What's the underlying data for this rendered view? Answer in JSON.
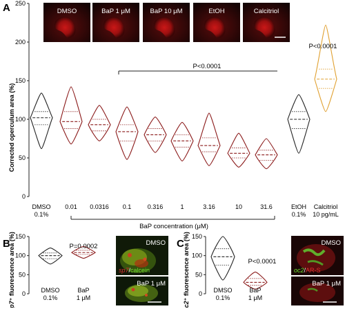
{
  "panels": {
    "A": {
      "letter": "A",
      "image_labels": [
        "DMSO",
        "BaP 1 μM",
        "BaP 10 μM",
        "EtOH",
        "Calcitriol"
      ],
      "ylabel": "Corrected operculum area (%)",
      "pval_group": "P<0.0001",
      "pval_calcitriol": "P<0.0001",
      "xgroup_label": "BaP concentration (μM)",
      "categories": [
        {
          "l1": "DMSO",
          "l2": "0.1%"
        },
        {
          "l1": "0.01",
          "l2": ""
        },
        {
          "l1": "0.0316",
          "l2": ""
        },
        {
          "l1": "0.1",
          "l2": ""
        },
        {
          "l1": "0.316",
          "l2": ""
        },
        {
          "l1": "1",
          "l2": ""
        },
        {
          "l1": "3.16",
          "l2": ""
        },
        {
          "l1": "10",
          "l2": ""
        },
        {
          "l1": "31.6",
          "l2": ""
        },
        {
          "l1": "EtOH",
          "l2": "0.1%"
        },
        {
          "l1": "Calcitriol",
          "l2": "10 pg/mL"
        }
      ]
    },
    "B": {
      "letter": "B",
      "ylabel_italic": "sp7",
      "ylabel_rest": "⁺ fluorescence area (%)",
      "pval": "P=0.0002",
      "categories": [
        {
          "l1": "DMSO",
          "l2": "0.1%"
        },
        {
          "l1": "BaP",
          "l2": "1 μM"
        }
      ],
      "img_top": "DMSO",
      "legend_red": "sp7",
      "legend_sep": "/",
      "legend_green": "calcein",
      "img_bottom": "BaP 1 μM"
    },
    "C": {
      "letter": "C",
      "ylabel_italic": "oc2",
      "ylabel_rest": "⁺ fluorescence area (%)",
      "pval": "P<0.0001",
      "categories": [
        {
          "l1": "DMSO",
          "l2": "0.1%"
        },
        {
          "l1": "BaP",
          "l2": "1 μM"
        }
      ],
      "img_top": "DMSO",
      "legend_green": "oc2",
      "legend_sep": "/",
      "legend_red": "AR-S",
      "img_bottom": "BaP 1 μM"
    }
  },
  "colors": {
    "black": "#222222",
    "bap": "#8b1a1a",
    "calcitriol": "#e0a030",
    "img_bg": "#1a0a0a"
  },
  "chart_data": [
    {
      "type": "violin",
      "panel": "A",
      "ylim": [
        0,
        250
      ],
      "yticks": [
        0,
        50,
        100,
        150,
        200,
        250
      ],
      "series": [
        {
          "category": "DMSO 0.1%",
          "min": 62,
          "q1": 93,
          "median": 102,
          "q3": 110,
          "max": 134,
          "color": "black"
        },
        {
          "category": "0.01",
          "min": 68,
          "q1": 88,
          "median": 97,
          "q3": 110,
          "max": 142,
          "color": "bap"
        },
        {
          "category": "0.0316",
          "min": 72,
          "q1": 85,
          "median": 93,
          "q3": 100,
          "max": 118,
          "color": "bap"
        },
        {
          "category": "0.1",
          "min": 48,
          "q1": 72,
          "median": 84,
          "q3": 93,
          "max": 116,
          "color": "bap"
        },
        {
          "category": "0.316",
          "min": 57,
          "q1": 72,
          "median": 80,
          "q3": 88,
          "max": 103,
          "color": "bap"
        },
        {
          "category": "1",
          "min": 46,
          "q1": 64,
          "median": 72,
          "q3": 80,
          "max": 96,
          "color": "bap"
        },
        {
          "category": "3.16",
          "min": 40,
          "q1": 58,
          "median": 66,
          "q3": 76,
          "max": 108,
          "color": "bap"
        },
        {
          "category": "10",
          "min": 38,
          "q1": 50,
          "median": 56,
          "q3": 63,
          "max": 82,
          "color": "bap"
        },
        {
          "category": "31.6",
          "min": 36,
          "q1": 47,
          "median": 54,
          "q3": 60,
          "max": 75,
          "color": "bap"
        },
        {
          "category": "EtOH 0.1%",
          "min": 56,
          "q1": 88,
          "median": 100,
          "q3": 110,
          "max": 132,
          "color": "black"
        },
        {
          "category": "Calcitriol 10 pg/mL",
          "min": 110,
          "q1": 140,
          "median": 152,
          "q3": 165,
          "max": 222,
          "color": "calcitriol"
        }
      ]
    },
    {
      "type": "violin",
      "panel": "B",
      "ylim": [
        0,
        150
      ],
      "yticks": [
        0,
        50,
        100,
        150
      ],
      "series": [
        {
          "category": "DMSO 0.1%",
          "min": 78,
          "q1": 92,
          "median": 100,
          "q3": 107,
          "max": 120,
          "color": "black"
        },
        {
          "category": "BaP 1 μM",
          "min": 93,
          "q1": 103,
          "median": 108,
          "q3": 114,
          "max": 124,
          "color": "bap"
        }
      ]
    },
    {
      "type": "violin",
      "panel": "C",
      "ylim": [
        0,
        150
      ],
      "yticks": [
        0,
        50,
        100,
        150
      ],
      "series": [
        {
          "category": "DMSO 0.1%",
          "min": 36,
          "q1": 75,
          "median": 97,
          "q3": 118,
          "max": 150,
          "color": "black"
        },
        {
          "category": "BaP 1 μM",
          "min": 12,
          "q1": 22,
          "median": 30,
          "q3": 40,
          "max": 57,
          "color": "bap"
        }
      ]
    }
  ]
}
